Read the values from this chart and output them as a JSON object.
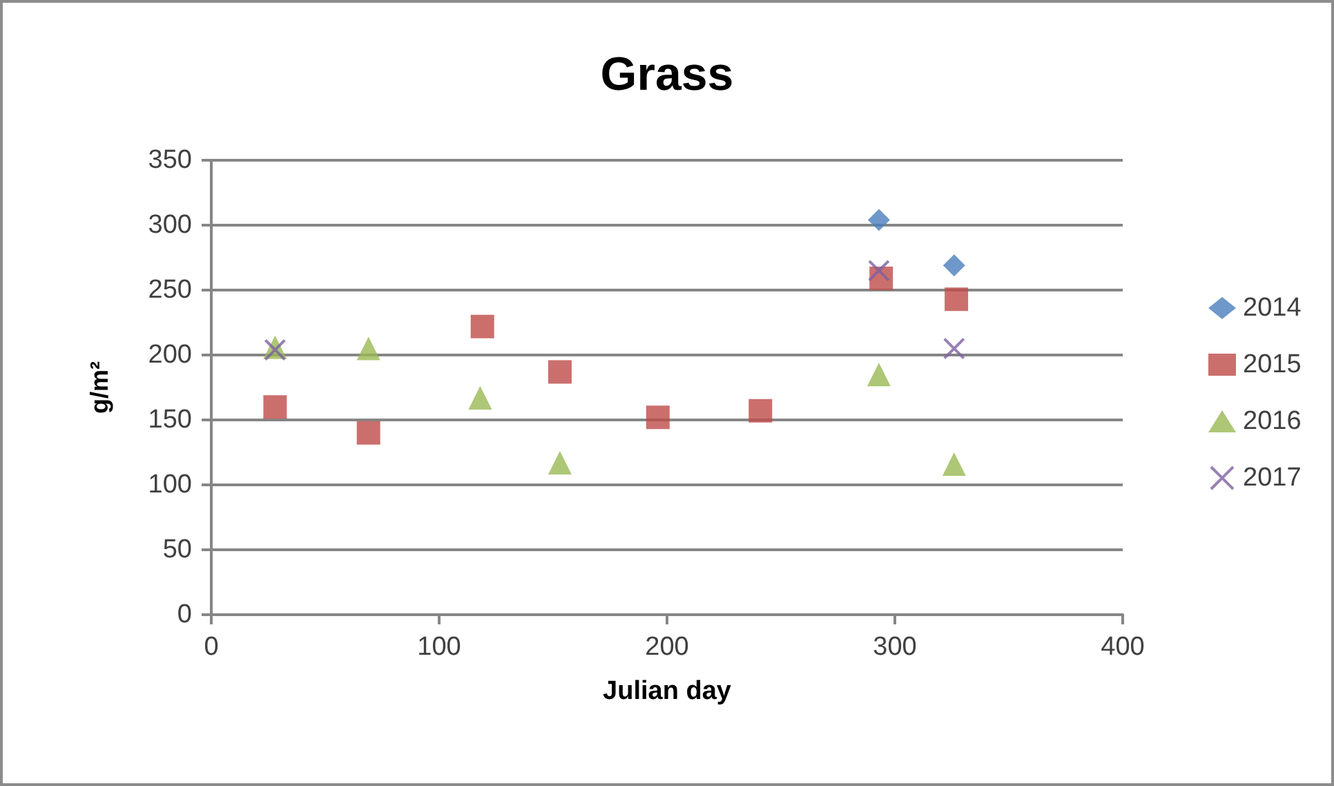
{
  "chart_data": {
    "type": "scatter",
    "title": "Grass",
    "xlabel": "Julian day",
    "ylabel": "g/m²",
    "xlim": [
      0,
      400
    ],
    "xticks": [
      0,
      100,
      200,
      300,
      400
    ],
    "ylim": [
      0,
      350
    ],
    "yticks": [
      0,
      50,
      100,
      150,
      200,
      250,
      300,
      350
    ],
    "grid": "y",
    "legend": "right",
    "series": [
      {
        "name": "2014",
        "color": "#4a7ebb",
        "marker": "diamond",
        "x": [
          293,
          326
        ],
        "values": [
          304,
          269
        ]
      },
      {
        "name": "2015",
        "color": "#be4b48",
        "marker": "square",
        "x": [
          28,
          69,
          119,
          153,
          196,
          241,
          294,
          327
        ],
        "values": [
          160,
          140,
          222,
          187,
          152,
          157,
          259,
          243
        ]
      },
      {
        "name": "2016",
        "color": "#98b954",
        "marker": "triangle",
        "x": [
          28,
          69,
          118,
          153,
          293,
          326
        ],
        "values": [
          206,
          205,
          167,
          117,
          185,
          116
        ]
      },
      {
        "name": "2017",
        "color": "#7d60a0",
        "marker": "cross",
        "x": [
          28,
          293,
          326
        ],
        "values": [
          204,
          265,
          205
        ]
      }
    ]
  }
}
